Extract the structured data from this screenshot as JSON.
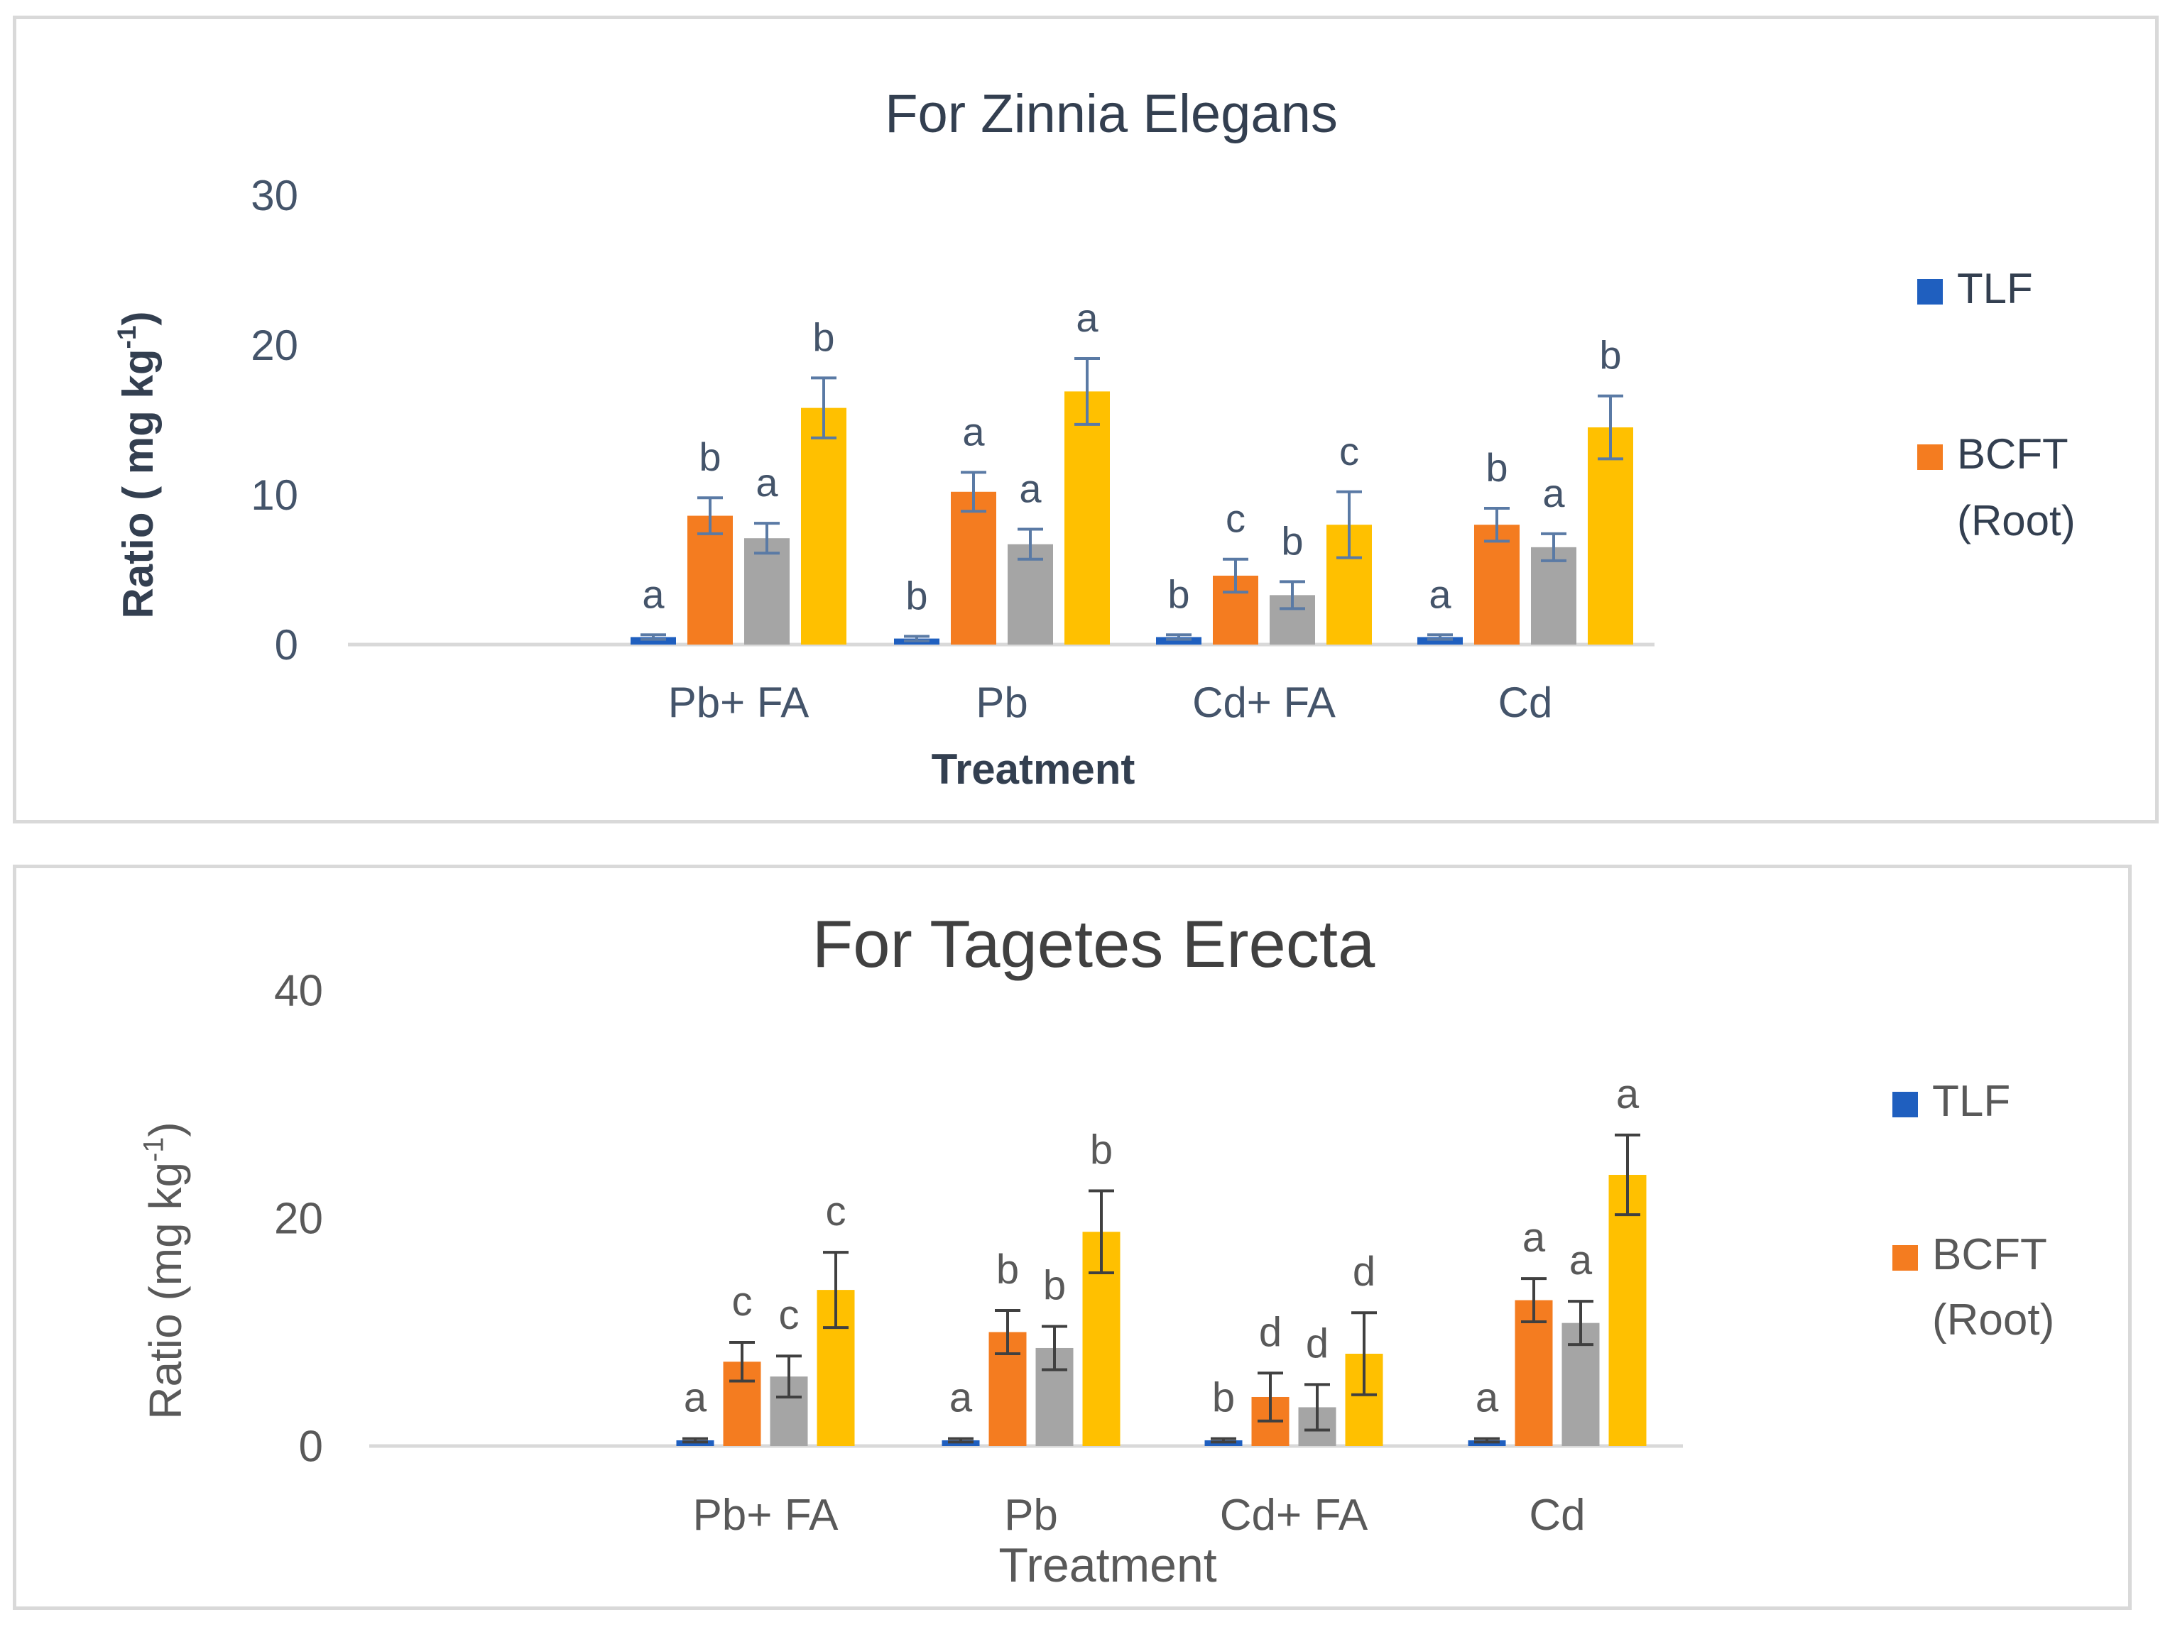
{
  "chart_data": [
    {
      "type": "bar",
      "title": "For Zinnia Elegans",
      "xlabel": "Treatment",
      "ylabel_main": "Ratio ( mg kg",
      "ylabel_sup": "-1",
      "ylabel_end": ")",
      "ylim": [
        0,
        30
      ],
      "yticks": [
        "0",
        "10",
        "20",
        "30"
      ],
      "ytick_values": [
        0,
        10,
        20,
        30
      ],
      "grid": false,
      "legend_position": "right",
      "categories": [
        "Pb+ FA",
        "Pb",
        "Cd+ FA",
        "Cd"
      ],
      "series": [
        {
          "name": "TLF",
          "color": "#1f5fbf",
          "values": [
            0.5,
            0.4,
            0.5,
            0.5
          ],
          "errors": [
            0.15,
            0.15,
            0.15,
            0.15
          ],
          "letters": [
            "a",
            "b",
            "b",
            "a"
          ]
        },
        {
          "name": "BCFT (Root)",
          "color": "#f47c20",
          "values": [
            8.6,
            10.2,
            4.6,
            8.0
          ],
          "errors": [
            1.2,
            1.3,
            1.1,
            1.1
          ],
          "letters": [
            "b",
            "a",
            "c",
            "b"
          ]
        },
        {
          "name": "",
          "color": "#a5a5a5",
          "values": [
            7.1,
            6.7,
            3.3,
            6.5
          ],
          "errors": [
            1.0,
            1.0,
            0.9,
            0.9
          ],
          "letters": [
            "a",
            "a",
            "b",
            "a"
          ]
        },
        {
          "name": "",
          "color": "#ffc000",
          "values": [
            15.8,
            16.9,
            8.0,
            14.5
          ],
          "errors": [
            2.0,
            2.2,
            2.2,
            2.1
          ],
          "letters": [
            "b",
            "a",
            "c",
            "b"
          ]
        }
      ],
      "legend_entries": [
        {
          "label": "TLF",
          "color": "#1f5fbf"
        },
        {
          "label": "BCFT",
          "label2": "(Root)",
          "color": "#f47c20"
        }
      ]
    },
    {
      "type": "bar",
      "title": "For Tagetes Erecta",
      "xlabel": "Treatment",
      "ylabel_main": "Ratio (mg kg",
      "ylabel_sup": "-1",
      "ylabel_end": ")",
      "ylim": [
        0,
        40
      ],
      "yticks": [
        "0",
        "20",
        "40"
      ],
      "ytick_values": [
        0,
        20,
        40
      ],
      "grid": false,
      "legend_position": "right",
      "categories": [
        "Pb+ FA",
        "Pb",
        "Cd+ FA",
        "Cd"
      ],
      "series": [
        {
          "name": "TLF",
          "color": "#1f5fbf",
          "values": [
            0.5,
            0.5,
            0.5,
            0.5
          ],
          "errors": [
            0.15,
            0.15,
            0.15,
            0.15
          ],
          "letters": [
            "a",
            "a",
            "b",
            "a"
          ]
        },
        {
          "name": "BCFT (Root)",
          "color": "#f47c20",
          "values": [
            7.4,
            10.0,
            4.3,
            12.8
          ],
          "errors": [
            1.7,
            1.9,
            2.1,
            1.9
          ],
          "letters": [
            "c",
            "b",
            "d",
            "a"
          ]
        },
        {
          "name": "",
          "color": "#a5a5a5",
          "values": [
            6.1,
            8.6,
            3.4,
            10.8
          ],
          "errors": [
            1.8,
            1.9,
            2.0,
            1.9
          ],
          "letters": [
            "c",
            "b",
            "d",
            "a"
          ]
        },
        {
          "name": "",
          "color": "#ffc000",
          "values": [
            13.7,
            18.8,
            8.1,
            23.8
          ],
          "errors": [
            3.3,
            3.6,
            3.6,
            3.5
          ],
          "letters": [
            "c",
            "b",
            "d",
            "a"
          ]
        }
      ],
      "legend_entries": [
        {
          "label": "TLF",
          "color": "#1f5fbf"
        },
        {
          "label": "BCFT",
          "label2": "(Root)",
          "color": "#f47c20"
        }
      ]
    }
  ]
}
